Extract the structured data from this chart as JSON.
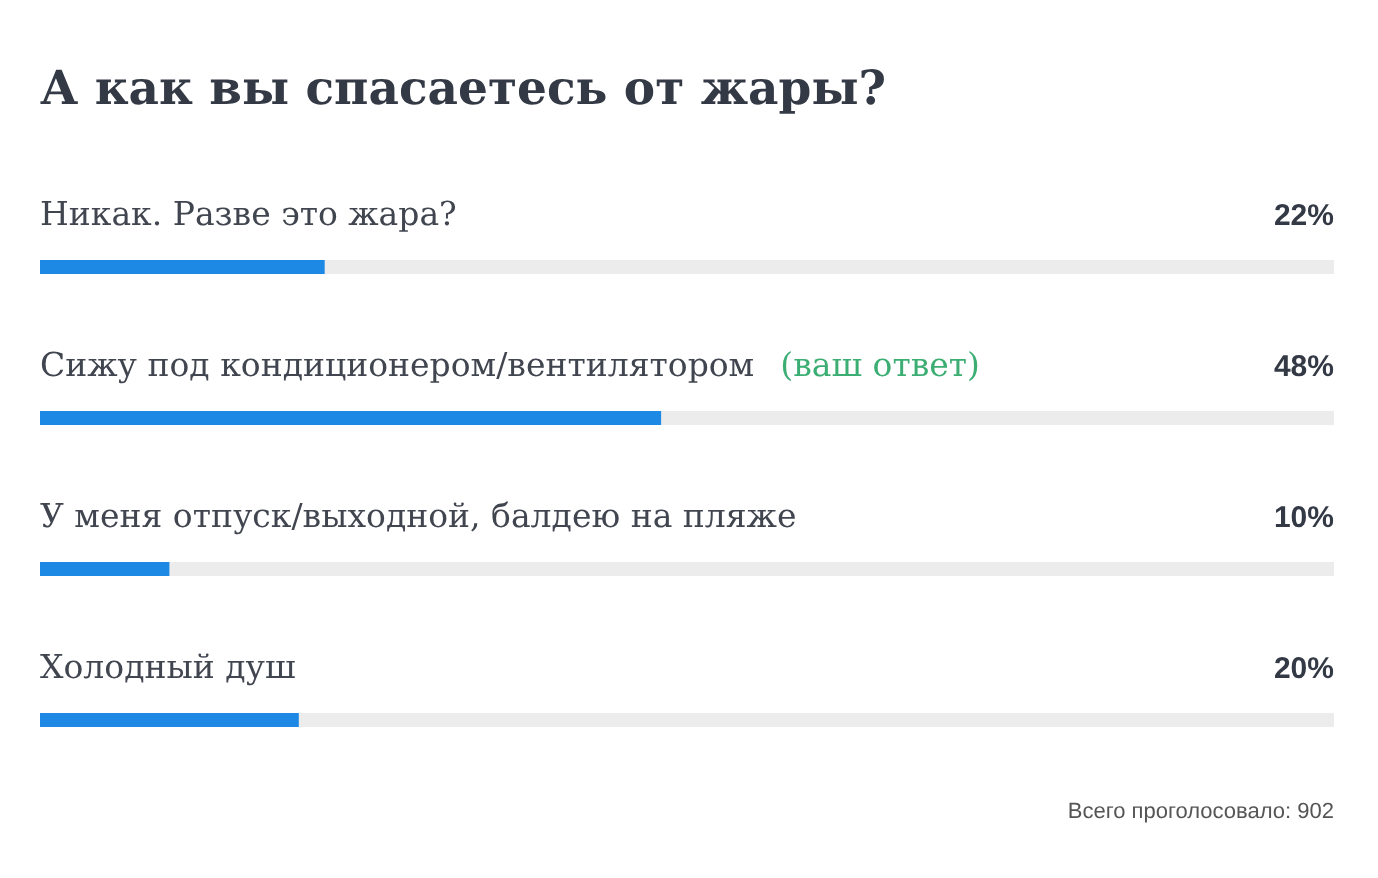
{
  "chart_data": {
    "type": "bar",
    "orientation": "horizontal",
    "title": "А как вы спасаетесь от жары?",
    "categories": [
      "Никак. Разве это жара?",
      "Сижу под кондиционером/вентилятором",
      "У меня отпуск/выходной, балдею на пляже",
      "Холодный душ"
    ],
    "values": [
      22,
      48,
      10,
      20
    ],
    "value_labels": [
      "22%",
      "48%",
      "10%",
      "20%"
    ],
    "color": "#1e88e5",
    "xlim": [
      0,
      100
    ],
    "tick_labels": false,
    "annotations": [
      "(ваш ответ)",
      "Всего проголосовало: 902"
    ]
  }
}
